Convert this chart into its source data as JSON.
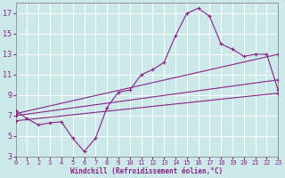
{
  "xlabel": "Windchill (Refroidissement éolien,°C)",
  "xlim": [
    0,
    23
  ],
  "ylim": [
    3,
    18
  ],
  "yticks": [
    3,
    5,
    7,
    9,
    11,
    13,
    15,
    17
  ],
  "xticks": [
    0,
    1,
    2,
    3,
    4,
    5,
    6,
    7,
    8,
    9,
    10,
    11,
    12,
    13,
    14,
    15,
    16,
    17,
    18,
    19,
    20,
    21,
    22,
    23
  ],
  "bg_color": "#cce8e8",
  "grid_color": "#ffffff",
  "line_color": "#882288",
  "tick_color": "#882288",
  "label_color": "#882288",
  "spine_color": "#888888",
  "lines": [
    {
      "x": [
        0,
        1,
        2,
        3,
        4,
        5,
        6,
        7,
        8,
        9,
        10,
        11,
        12,
        13,
        14,
        15,
        16,
        17,
        18,
        19,
        20,
        21,
        22,
        23
      ],
      "y": [
        7.5,
        6.7,
        6.1,
        6.3,
        6.4,
        4.8,
        3.5,
        4.8,
        7.8,
        9.3,
        9.5,
        11.0,
        11.5,
        12.2,
        14.8,
        17.0,
        17.5,
        16.7,
        14.0,
        13.5,
        12.8,
        13.0,
        13.0,
        9.5
      ]
    },
    {
      "x": [
        0,
        23
      ],
      "y": [
        7.2,
        13.0
      ]
    },
    {
      "x": [
        0,
        23
      ],
      "y": [
        7.0,
        10.5
      ]
    },
    {
      "x": [
        0,
        23
      ],
      "y": [
        6.5,
        9.2
      ]
    }
  ]
}
